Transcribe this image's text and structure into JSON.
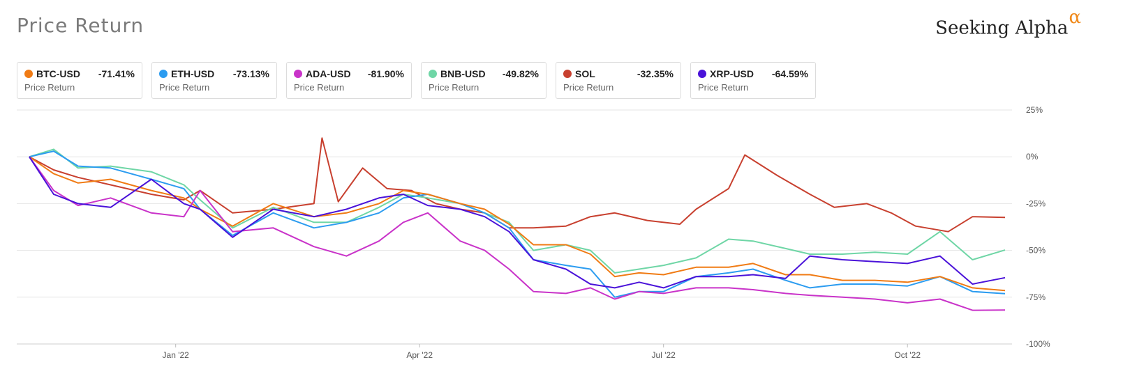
{
  "header": {
    "title": "Price Return",
    "brand": "Seeking Alpha",
    "brand_mark": "α"
  },
  "legend": [
    {
      "symbol": "BTC-USD",
      "value": "-71.41%",
      "sub": "Price Return",
      "color": "#f07b14"
    },
    {
      "symbol": "ETH-USD",
      "value": "-73.13%",
      "sub": "Price Return",
      "color": "#2c9cf0"
    },
    {
      "symbol": "ADA-USD",
      "value": "-81.90%",
      "sub": "Price Return",
      "color": "#c933c9"
    },
    {
      "symbol": "BNB-USD",
      "value": "-49.82%",
      "sub": "Price Return",
      "color": "#6fd6a6"
    },
    {
      "symbol": "SOL",
      "value": "-32.35%",
      "sub": "Price Return",
      "color": "#c8402f"
    },
    {
      "symbol": "XRP-USD",
      "value": "-64.59%",
      "sub": "Price Return",
      "color": "#4a12d9"
    }
  ],
  "chart_data": {
    "type": "line",
    "title": "Price Return",
    "ylim": [
      -100,
      25
    ],
    "y_ticks": [
      25,
      0,
      -25,
      -50,
      -75,
      -100
    ],
    "y_tick_labels": [
      "25%",
      "0%",
      "-25%",
      "-50%",
      "-75%",
      "-100%"
    ],
    "x_range": [
      0,
      12
    ],
    "x_ticks": [
      1.8,
      4.8,
      7.8,
      10.8
    ],
    "x_tick_labels": [
      "Jan '22",
      "Apr '22",
      "Jul '22",
      "Oct '22"
    ],
    "grid": true,
    "series": [
      {
        "name": "BTC-USD",
        "color": "#f07b14",
        "x": [
          0,
          0.3,
          0.6,
          1,
          1.5,
          1.9,
          2.1,
          2.5,
          3,
          3.5,
          3.9,
          4.3,
          4.6,
          4.9,
          5.3,
          5.6,
          5.9,
          6.2,
          6.6,
          6.9,
          7.2,
          7.5,
          7.8,
          8.2,
          8.6,
          8.9,
          9.3,
          9.6,
          10,
          10.4,
          10.8,
          11.2,
          11.6,
          12
        ],
        "y": [
          0,
          -9,
          -14,
          -12,
          -18,
          -22,
          -28,
          -37,
          -25,
          -32,
          -30,
          -25,
          -18,
          -20,
          -25,
          -28,
          -36,
          -47,
          -47,
          -52,
          -64,
          -62,
          -63,
          -59,
          -59,
          -57,
          -63,
          -63,
          -66,
          -66,
          -67,
          -64,
          -70,
          -71.41
        ]
      },
      {
        "name": "ETH-USD",
        "color": "#2c9cf0",
        "x": [
          0,
          0.3,
          0.6,
          1,
          1.5,
          1.9,
          2.1,
          2.5,
          3,
          3.5,
          3.9,
          4.3,
          4.6,
          4.9,
          5.3,
          5.6,
          5.9,
          6.2,
          6.6,
          6.9,
          7.2,
          7.5,
          7.8,
          8.2,
          8.6,
          8.9,
          9.3,
          9.6,
          10,
          10.4,
          10.8,
          11.2,
          11.6,
          12
        ],
        "y": [
          0,
          3,
          -5,
          -6,
          -12,
          -17,
          -28,
          -42,
          -30,
          -38,
          -35,
          -30,
          -22,
          -20,
          -25,
          -30,
          -38,
          -55,
          -58,
          -60,
          -75,
          -72,
          -72,
          -64,
          -62,
          -60,
          -66,
          -70,
          -68,
          -68,
          -69,
          -64,
          -72,
          -73.13
        ]
      },
      {
        "name": "ADA-USD",
        "color": "#c933c9",
        "x": [
          0,
          0.3,
          0.6,
          1,
          1.5,
          1.9,
          2.1,
          2.5,
          3,
          3.5,
          3.9,
          4.3,
          4.6,
          4.9,
          5.3,
          5.6,
          5.9,
          6.2,
          6.6,
          6.9,
          7.2,
          7.5,
          7.8,
          8.2,
          8.6,
          8.9,
          9.3,
          9.6,
          10,
          10.4,
          10.8,
          11.2,
          11.6,
          12
        ],
        "y": [
          0,
          -18,
          -26,
          -22,
          -30,
          -32,
          -18,
          -40,
          -38,
          -48,
          -53,
          -45,
          -35,
          -30,
          -45,
          -50,
          -60,
          -72,
          -73,
          -70,
          -76,
          -72,
          -73,
          -70,
          -70,
          -71,
          -73,
          -74,
          -75,
          -76,
          -78,
          -76,
          -82,
          -81.9
        ]
      },
      {
        "name": "BNB-USD",
        "color": "#6fd6a6",
        "x": [
          0,
          0.3,
          0.6,
          1,
          1.5,
          1.9,
          2.1,
          2.5,
          3,
          3.5,
          3.9,
          4.3,
          4.6,
          4.9,
          5.3,
          5.6,
          5.9,
          6.2,
          6.6,
          6.9,
          7.2,
          7.5,
          7.8,
          8.2,
          8.6,
          8.9,
          9.3,
          9.6,
          10,
          10.4,
          10.8,
          11.2,
          11.6,
          12
        ],
        "y": [
          0,
          4,
          -6,
          -5,
          -8,
          -15,
          -23,
          -38,
          -27,
          -35,
          -35,
          -27,
          -20,
          -22,
          -25,
          -30,
          -35,
          -50,
          -47,
          -50,
          -62,
          -60,
          -58,
          -54,
          -44,
          -45,
          -49,
          -52,
          -52,
          -51,
          -52,
          -40,
          -55,
          -49.82
        ]
      },
      {
        "name": "SOL",
        "color": "#c8402f",
        "x": [
          0,
          0.3,
          0.6,
          1,
          1.5,
          1.9,
          2.1,
          2.5,
          3,
          3.5,
          3.6,
          3.8,
          4.1,
          4.4,
          4.7,
          5.0,
          5.3,
          5.6,
          5.9,
          6.2,
          6.6,
          6.9,
          7.2,
          7.6,
          8.0,
          8.2,
          8.6,
          8.8,
          9.2,
          9.6,
          9.9,
          10.3,
          10.6,
          10.9,
          11.3,
          11.6,
          12
        ],
        "y": [
          0,
          -7,
          -11,
          -15,
          -20,
          -23,
          -18,
          -30,
          -28,
          -25,
          10,
          -24,
          -6,
          -17,
          -18,
          -25,
          -28,
          -30,
          -38,
          -38,
          -37,
          -32,
          -30,
          -34,
          -36,
          -28,
          -17,
          1,
          -10,
          -20,
          -27,
          -25,
          -30,
          -37,
          -40,
          -32,
          -32.35
        ]
      },
      {
        "name": "XRP-USD",
        "color": "#4a12d9",
        "x": [
          0,
          0.3,
          0.6,
          1,
          1.5,
          1.9,
          2.1,
          2.5,
          3,
          3.5,
          3.9,
          4.3,
          4.6,
          4.9,
          5.3,
          5.6,
          5.9,
          6.2,
          6.6,
          6.9,
          7.2,
          7.5,
          7.8,
          8.2,
          8.6,
          8.9,
          9.3,
          9.6,
          10,
          10.4,
          10.8,
          11.2,
          11.6,
          12
        ],
        "y": [
          0,
          -20,
          -25,
          -27,
          -12,
          -25,
          -28,
          -43,
          -28,
          -32,
          -28,
          -22,
          -20,
          -26,
          -28,
          -32,
          -40,
          -55,
          -60,
          -68,
          -70,
          -67,
          -70,
          -64,
          -64,
          -63,
          -65,
          -53,
          -55,
          -56,
          -57,
          -53,
          -68,
          -64.59
        ]
      }
    ]
  }
}
